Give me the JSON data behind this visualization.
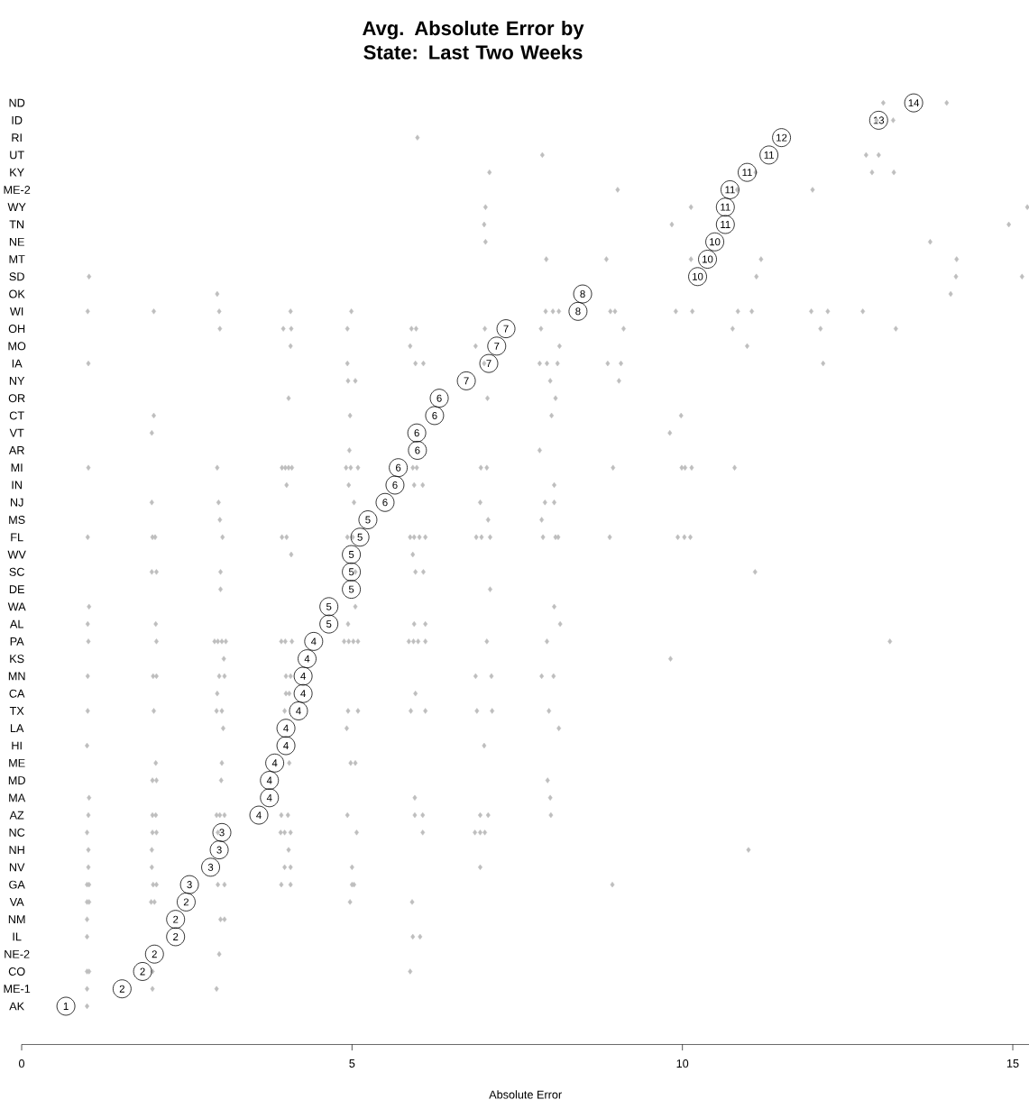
{
  "chart_data": {
    "type": "scatter",
    "orientation": "horizontal",
    "title": "Avg. Absolute Error by State: Last Two Weeks",
    "xlabel": "Absolute Error",
    "categories": [
      "ND",
      "ID",
      "RI",
      "UT",
      "KY",
      "ME-2",
      "WY",
      "TN",
      "NE",
      "MT",
      "SD",
      "OK",
      "WI",
      "OH",
      "MO",
      "IA",
      "NY",
      "OR",
      "CT",
      "VT",
      "AR",
      "MI",
      "IN",
      "NJ",
      "MS",
      "FL",
      "WV",
      "SC",
      "DE",
      "WA",
      "AL",
      "PA",
      "KS",
      "MN",
      "CA",
      "TX",
      "LA",
      "HI",
      "ME",
      "MD",
      "MA",
      "AZ",
      "NC",
      "NH",
      "NV",
      "GA",
      "VA",
      "NM",
      "IL",
      "NE-2",
      "CO",
      "ME-1",
      "AK"
    ],
    "xlim": [
      0,
      15.25
    ],
    "xticks": [
      0,
      5,
      10,
      15
    ],
    "series": [
      {
        "color": "#bebebe",
        "marker": "diamond",
        "x": [
          "ND",
          "ND",
          "ID",
          "ID",
          "RI",
          "UT",
          "UT",
          "UT",
          "KY",
          "KY",
          "KY",
          "KY",
          "ME-2",
          "ME-2",
          "ME-2",
          "WY",
          "WY",
          "WY",
          "TN",
          "TN",
          "TN",
          "NE",
          "NE",
          "MT",
          "MT",
          "MT",
          "MT",
          "MT",
          "SD",
          "SD",
          "SD",
          "SD",
          "OK",
          "OK",
          "WI",
          "WI",
          "WI",
          "WI",
          "WI",
          "WI",
          "WI",
          "WI",
          "WI",
          "WI",
          "WI",
          "WI",
          "WI",
          "WI",
          "WI",
          "WI",
          "WI",
          "OH",
          "OH",
          "OH",
          "OH",
          "OH",
          "OH",
          "OH",
          "OH",
          "OH",
          "OH",
          "OH",
          "OH",
          "MO",
          "MO",
          "MO",
          "MO",
          "MO",
          "IA",
          "IA",
          "IA",
          "IA",
          "IA",
          "IA",
          "IA",
          "IA",
          "IA",
          "IA",
          "IA",
          "NY",
          "NY",
          "NY",
          "NY",
          "OR",
          "OR",
          "OR",
          "CT",
          "CT",
          "CT",
          "CT",
          "VT",
          "VT",
          "AR",
          "AR",
          "MI",
          "MI",
          "MI",
          "MI",
          "MI",
          "MI",
          "MI",
          "MI",
          "MI",
          "MI",
          "MI",
          "MI",
          "MI",
          "MI",
          "MI",
          "MI",
          "MI",
          "MI",
          "IN",
          "IN",
          "IN",
          "IN",
          "IN",
          "NJ",
          "NJ",
          "NJ",
          "NJ",
          "NJ",
          "NJ",
          "MS",
          "MS",
          "MS",
          "FL",
          "FL",
          "FL",
          "FL",
          "FL",
          "FL",
          "FL",
          "FL",
          "FL",
          "FL",
          "FL",
          "FL",
          "FL",
          "FL",
          "FL",
          "FL",
          "FL",
          "FL",
          "FL",
          "FL",
          "FL",
          "FL",
          "WV",
          "WV",
          "SC",
          "SC",
          "SC",
          "SC",
          "SC",
          "SC",
          "SC",
          "DE",
          "DE",
          "WA",
          "WA",
          "WA",
          "AL",
          "AL",
          "AL",
          "AL",
          "AL",
          "AL",
          "PA",
          "PA",
          "PA",
          "PA",
          "PA",
          "PA",
          "PA",
          "PA",
          "PA",
          "PA",
          "PA",
          "PA",
          "PA",
          "PA",
          "PA",
          "PA",
          "PA",
          "PA",
          "PA",
          "PA",
          "KS",
          "KS",
          "MN",
          "MN",
          "MN",
          "MN",
          "MN",
          "MN",
          "MN",
          "MN",
          "MN",
          "MN",
          "MN",
          "CA",
          "CA",
          "CA",
          "CA",
          "TX",
          "TX",
          "TX",
          "TX",
          "TX",
          "TX",
          "TX",
          "TX",
          "TX",
          "TX",
          "TX",
          "TX",
          "LA",
          "LA",
          "LA",
          "HI",
          "HI",
          "ME",
          "ME",
          "ME",
          "ME",
          "ME",
          "MD",
          "MD",
          "MD",
          "MD",
          "MA",
          "MA",
          "MA",
          "AZ",
          "AZ",
          "AZ",
          "AZ",
          "AZ",
          "AZ",
          "AZ",
          "AZ",
          "AZ",
          "AZ",
          "AZ",
          "AZ",
          "AZ",
          "AZ",
          "NC",
          "NC",
          "NC",
          "NC",
          "NC",
          "NC",
          "NC",
          "NC",
          "NC",
          "NC",
          "NC",
          "NC",
          "NH",
          "NH",
          "NH",
          "NH",
          "NV",
          "NV",
          "NV",
          "NV",
          "NV",
          "NV",
          "GA",
          "GA",
          "GA",
          "GA",
          "GA",
          "GA",
          "GA",
          "GA",
          "GA",
          "GA",
          "GA",
          "VA",
          "VA",
          "VA",
          "VA",
          "VA",
          "VA",
          "NM",
          "NM",
          "NM",
          "IL",
          "IL",
          "IL",
          "NE-2",
          "CO",
          "CO",
          "CO",
          "CO",
          "ME-1",
          "ME-1",
          "ME-1",
          "AK"
        ],
        "values": [
          13.04,
          14.0,
          12.94,
          13.19,
          5.99,
          7.88,
          12.78,
          12.97,
          7.08,
          11.11,
          12.87,
          13.2,
          9.02,
          10.83,
          11.97,
          7.02,
          10.13,
          15.22,
          7.0,
          9.84,
          14.94,
          7.02,
          13.75,
          7.94,
          8.85,
          10.13,
          11.19,
          14.15,
          1.02,
          11.12,
          14.14,
          15.14,
          2.96,
          14.06,
          1.0,
          2.0,
          2.99,
          4.07,
          4.99,
          7.93,
          8.04,
          8.13,
          8.91,
          8.98,
          9.9,
          10.15,
          10.84,
          11.05,
          11.95,
          12.2,
          12.73,
          3.0,
          3.96,
          4.08,
          4.93,
          5.9,
          5.97,
          7.01,
          7.86,
          9.11,
          10.76,
          12.09,
          13.23,
          4.07,
          5.88,
          6.87,
          8.14,
          10.98,
          1.01,
          4.93,
          5.96,
          6.08,
          7.0,
          7.84,
          7.95,
          8.11,
          8.87,
          9.07,
          12.13,
          4.94,
          5.05,
          8.0,
          9.04,
          4.04,
          7.05,
          8.08,
          2.0,
          4.97,
          8.02,
          9.98,
          1.97,
          9.81,
          4.96,
          7.84,
          1.01,
          2.96,
          3.94,
          3.99,
          4.04,
          4.09,
          4.91,
          4.98,
          5.09,
          5.92,
          5.98,
          6.95,
          7.04,
          8.95,
          9.99,
          10.04,
          10.14,
          10.79,
          4.01,
          4.95,
          5.94,
          6.07,
          8.06,
          1.97,
          2.98,
          5.03,
          6.94,
          7.92,
          8.06,
          3.0,
          7.06,
          7.87,
          1.0,
          1.98,
          2.02,
          3.04,
          3.94,
          4.01,
          4.93,
          5.01,
          5.88,
          5.94,
          6.02,
          6.11,
          6.88,
          6.96,
          7.09,
          7.89,
          8.08,
          8.12,
          8.9,
          9.93,
          10.03,
          10.12,
          4.08,
          5.92,
          1.97,
          2.04,
          3.01,
          5.05,
          5.96,
          6.08,
          11.1,
          3.01,
          7.09,
          1.02,
          5.05,
          8.06,
          1.0,
          2.03,
          4.94,
          5.94,
          6.11,
          8.15,
          1.01,
          2.04,
          2.92,
          2.97,
          3.03,
          3.09,
          3.93,
          3.99,
          4.09,
          4.88,
          4.95,
          5.02,
          5.09,
          5.86,
          5.93,
          6.0,
          6.11,
          7.04,
          7.95,
          13.14,
          3.06,
          9.82,
          1.0,
          1.99,
          2.04,
          2.99,
          3.07,
          4.0,
          4.07,
          6.87,
          7.11,
          7.87,
          8.05,
          2.96,
          4.0,
          4.05,
          5.96,
          1.0,
          2.0,
          2.95,
          3.03,
          3.98,
          4.94,
          5.09,
          5.89,
          6.11,
          6.89,
          7.12,
          7.98,
          3.05,
          4.92,
          8.13,
          0.99,
          7.0,
          2.03,
          3.03,
          4.05,
          4.98,
          5.05,
          1.98,
          2.04,
          3.02,
          7.96,
          1.02,
          5.95,
          8.0,
          1.01,
          1.98,
          2.03,
          2.95,
          3.0,
          3.07,
          3.93,
          4.03,
          4.93,
          5.95,
          6.07,
          6.94,
          7.06,
          8.01,
          0.99,
          1.98,
          2.04,
          2.97,
          3.92,
          3.98,
          4.07,
          5.07,
          6.07,
          6.86,
          6.94,
          7.01,
          1.01,
          1.97,
          4.04,
          11.0,
          1.01,
          1.97,
          3.98,
          4.07,
          5.0,
          6.94,
          0.99,
          1.02,
          1.99,
          2.04,
          2.97,
          3.07,
          3.93,
          4.07,
          5.0,
          5.03,
          8.94,
          0.99,
          1.02,
          1.96,
          2.01,
          4.97,
          5.91,
          0.99,
          3.01,
          3.07,
          0.99,
          5.92,
          6.03,
          2.99,
          0.99,
          1.02,
          1.98,
          5.88,
          0.99,
          1.98,
          2.95,
          0.99
        ]
      },
      {
        "color": "#000000",
        "marker": "circle",
        "values": [
          13.5,
          12.97,
          11.5,
          11.31,
          10.98,
          10.72,
          10.65,
          10.65,
          10.49,
          10.38,
          10.23,
          8.49,
          8.42,
          7.33,
          7.19,
          7.07,
          6.73,
          6.32,
          6.25,
          5.98,
          5.99,
          5.7,
          5.65,
          5.5,
          5.24,
          5.12,
          4.99,
          4.99,
          4.99,
          4.65,
          4.65,
          4.42,
          4.32,
          4.26,
          4.26,
          4.19,
          4.0,
          4.0,
          3.83,
          3.75,
          3.75,
          3.59,
          3.03,
          2.99,
          2.86,
          2.54,
          2.49,
          2.33,
          2.33,
          2.01,
          1.83,
          1.52,
          0.67
        ],
        "value_labels": [
          "14",
          "13",
          "12",
          "11",
          "11",
          "11",
          "11",
          "11",
          "10",
          "10",
          "10",
          "8",
          "8",
          "7",
          "7",
          "7",
          "7",
          "6",
          "6",
          "6",
          "6",
          "6",
          "6",
          "6",
          "5",
          "5",
          "5",
          "5",
          "5",
          "5",
          "5",
          "4",
          "4",
          "4",
          "4",
          "4",
          "4",
          "4",
          "4",
          "4",
          "4",
          "4",
          "3",
          "3",
          "3",
          "3",
          "2",
          "2",
          "2",
          "2",
          "2",
          "2",
          "1"
        ]
      }
    ]
  }
}
